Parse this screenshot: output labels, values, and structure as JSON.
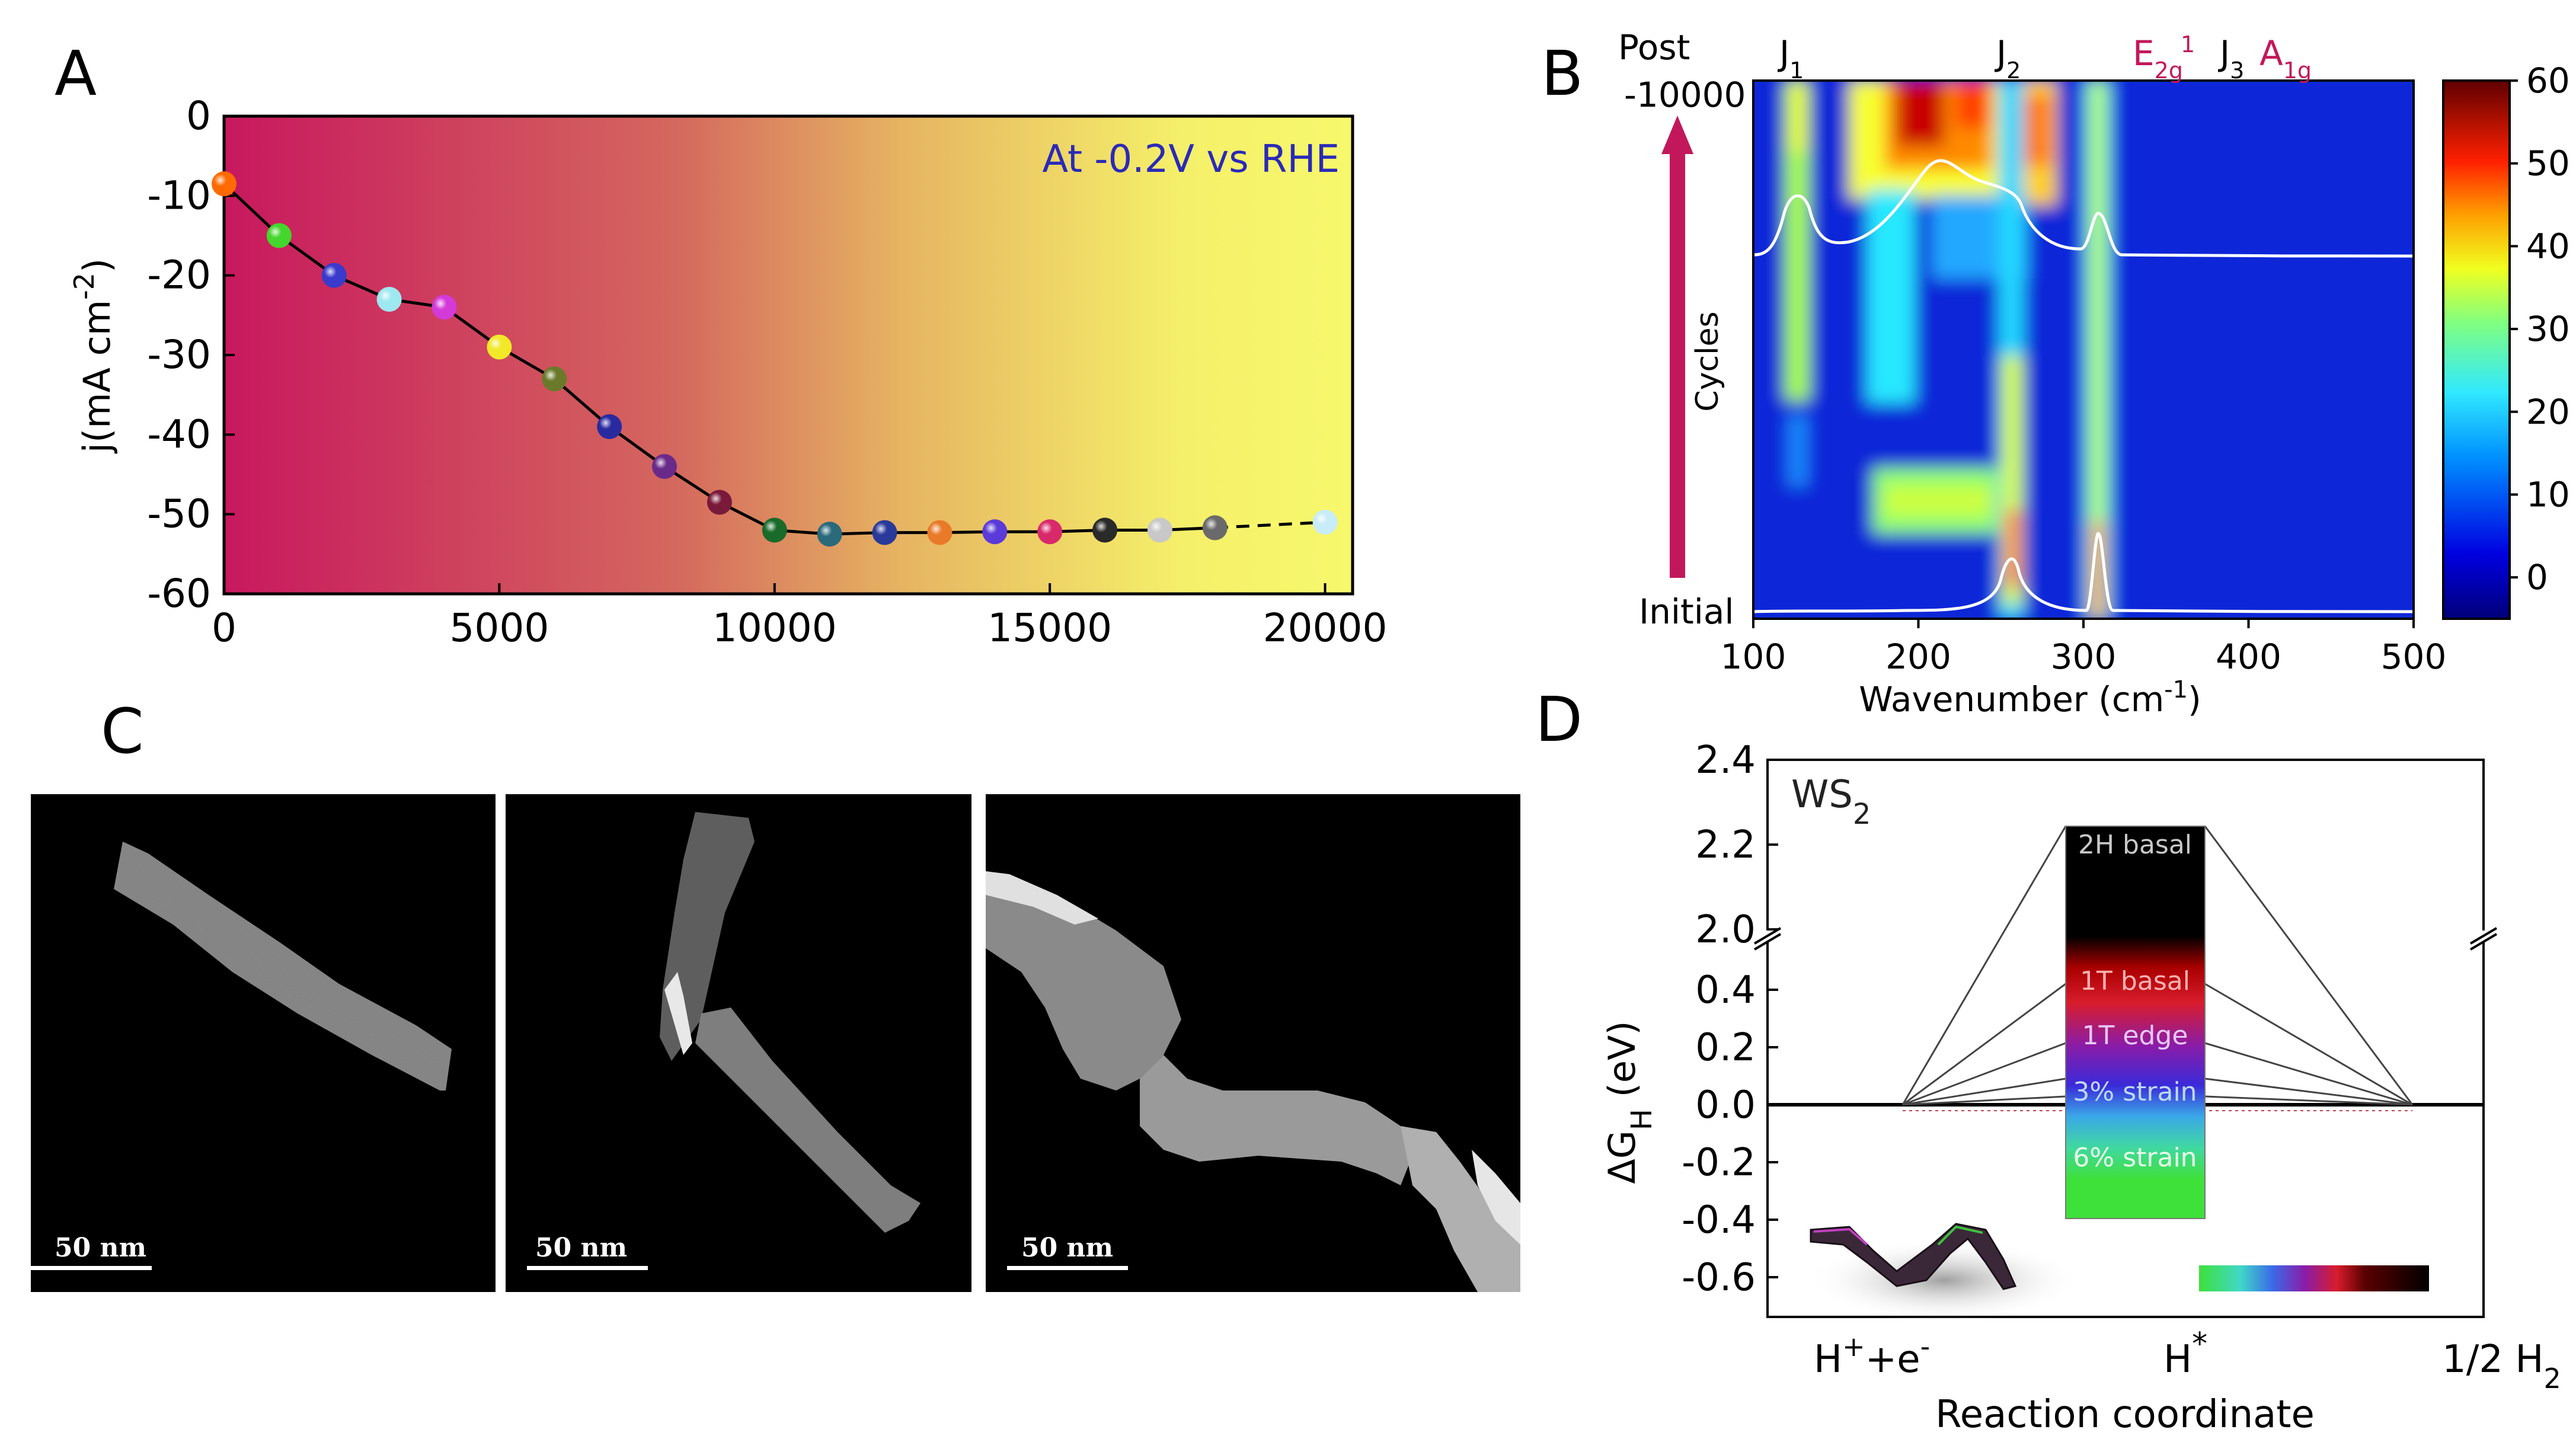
{
  "panels": {
    "A": {
      "letter": "A",
      "chart_data": {
        "type": "scatter",
        "annotation": "At -0.2V vs RHE",
        "ylabel": "j(mA cm^-2)",
        "ylabel_parts": {
          "main": "j(mA cm",
          "sup": "-2",
          "end": ")"
        },
        "xlabel": "",
        "xlim": [
          0,
          20500
        ],
        "ylim": [
          -60,
          0
        ],
        "xticks": [
          0,
          5000,
          10000,
          15000,
          20000
        ],
        "yticks": [
          0,
          -10,
          -20,
          -30,
          -40,
          -50,
          -60
        ],
        "gradient": {
          "start": "#c8185e",
          "mid": "#d47a62",
          "end": "#f5f76a"
        },
        "points": [
          {
            "x": 0,
            "y": -8.5,
            "color": "#ff6a00"
          },
          {
            "x": 1000,
            "y": -15,
            "color": "#44d62c"
          },
          {
            "x": 2000,
            "y": -20,
            "color": "#3a3acc"
          },
          {
            "x": 3000,
            "y": -23,
            "color": "#9ee8f0"
          },
          {
            "x": 4000,
            "y": -24,
            "color": "#d43ad8"
          },
          {
            "x": 5000,
            "y": -29,
            "color": "#f2e82a"
          },
          {
            "x": 6000,
            "y": -33,
            "color": "#6a7a2a"
          },
          {
            "x": 7000,
            "y": -39,
            "color": "#2a2aa0"
          },
          {
            "x": 8000,
            "y": -44,
            "color": "#6a2a8a"
          },
          {
            "x": 9000,
            "y": -48.5,
            "color": "#7a1a3a"
          },
          {
            "x": 10000,
            "y": -52,
            "color": "#1a6a2a"
          },
          {
            "x": 11000,
            "y": -52.5,
            "color": "#2a6a7a"
          },
          {
            "x": 12000,
            "y": -52.3,
            "color": "#2a3a9a"
          },
          {
            "x": 13000,
            "y": -52.3,
            "color": "#e87a2a"
          },
          {
            "x": 14000,
            "y": -52.2,
            "color": "#5a3ad8"
          },
          {
            "x": 15000,
            "y": -52.2,
            "color": "#d82a6a"
          },
          {
            "x": 16000,
            "y": -52,
            "color": "#2a2a2a"
          },
          {
            "x": 17000,
            "y": -52,
            "color": "#c8c8c8"
          },
          {
            "x": 18000,
            "y": -51.7,
            "color": "#6a6a6a"
          },
          {
            "x": 20000,
            "y": -51,
            "color": "#c8ecf8"
          }
        ]
      }
    },
    "B": {
      "letter": "B",
      "chart_data": {
        "type": "heatmap",
        "xlabel": "Wavenumber (cm^-1)",
        "xlabel_parts": {
          "main": "Wavenumber (cm",
          "sup": "-1",
          "end": ")"
        },
        "xlim": [
          100,
          500
        ],
        "xticks": [
          100,
          200,
          300,
          400,
          500
        ],
        "ylabels": {
          "post": "Post",
          "top": "-10000",
          "cycles": "Cycles",
          "initial": "Initial"
        },
        "colorbar": {
          "min": -5,
          "max": 60,
          "ticks": [
            0,
            10,
            20,
            30,
            40,
            50,
            60
          ]
        },
        "peaks": [
          {
            "label": "J1",
            "base": "J",
            "sub": "1",
            "x": 130
          },
          {
            "label": "J2",
            "base": "J",
            "sub": "2",
            "x": 260
          },
          {
            "label": "E2g1",
            "base": "E",
            "sub": "2g",
            "sup": "1",
            "x": 350
          },
          {
            "label": "J3",
            "base": "J",
            "sub": "3",
            "x": 400
          },
          {
            "label": "A1g",
            "base": "A",
            "sub": "1g",
            "x": 420
          }
        ],
        "peak_label_color": "#c2185b",
        "arrow_color": "#c2185b"
      }
    },
    "C": {
      "letter": "C",
      "scale_bars": [
        "50 nm",
        "50 nm",
        "50 nm"
      ]
    },
    "D": {
      "letter": "D",
      "chart_data": {
        "type": "line",
        "title": "WS2",
        "title_parts": {
          "main": "WS",
          "sub": "2"
        },
        "ylabel": "ΔGH (eV)",
        "xlabel": "Reaction coordinate",
        "xticks": [
          "H++e-",
          "H*",
          "1/2 H2"
        ],
        "yticks_upper": [
          2.4,
          2.2,
          2.0
        ],
        "yticks_lower": [
          0.4,
          0.2,
          0.0,
          -0.2,
          -0.4,
          -0.6
        ],
        "levels": [
          {
            "label": "2H basal",
            "value": 2.22
          },
          {
            "label": "1T basal",
            "value": 0.28
          },
          {
            "label": "1T edge",
            "value": 0.12
          },
          {
            "label": "3% strain",
            "value": 0.03
          },
          {
            "label": "6% strain",
            "value": -0.01
          }
        ]
      }
    }
  }
}
